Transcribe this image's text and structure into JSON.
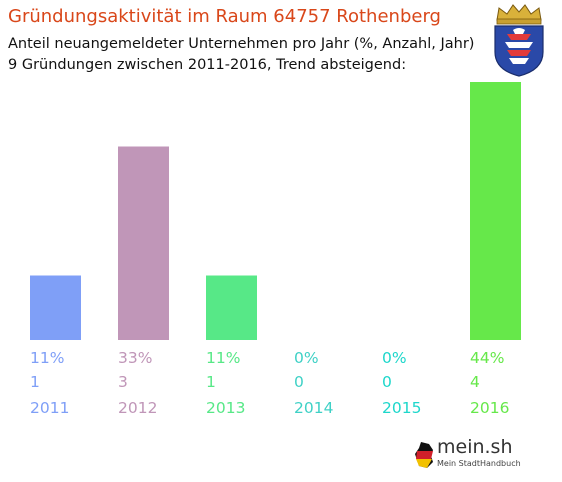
{
  "title": "Gründungsaktivität im Raum 64757 Rothenberg",
  "subtitle_line1": "Anteil neuangemeldeter Unternehmen pro Jahr (%, Anzahl, Jahr)",
  "subtitle_line2": "9 Gründungen zwischen 2011-2016, Trend absteigend:",
  "logo": {
    "name": "mein.sh",
    "tagline": "Mein StadtHandbuch"
  },
  "chart_data": {
    "type": "bar",
    "categories": [
      "2011",
      "2012",
      "2013",
      "2014",
      "2015",
      "2016"
    ],
    "percent_labels": [
      "11%",
      "33%",
      "11%",
      "0%",
      "0%",
      "44%"
    ],
    "count_labels": [
      "1",
      "3",
      "1",
      "0",
      "0",
      "4"
    ],
    "values": [
      11,
      33,
      11,
      0,
      0,
      44
    ],
    "colors": [
      "#7f9ff7",
      "#c096b8",
      "#57e887",
      "#47d0c4",
      "#31d4c6",
      "#66e84a"
    ],
    "label_colors": [
      "#7f9ff7",
      "#c096b8",
      "#57e887",
      "#3fd1c6",
      "#1ed7cb",
      "#66e84a"
    ],
    "ylim": [
      0,
      44
    ]
  }
}
